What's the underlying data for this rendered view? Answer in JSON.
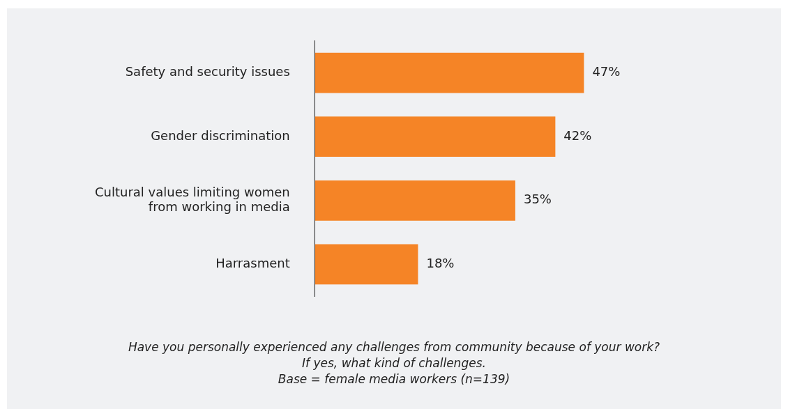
{
  "chart_data": {
    "type": "bar",
    "orientation": "horizontal",
    "categories": [
      "Safety and security issues",
      "Gender discrimination",
      "Cultural values limiting women from working in media",
      "Harrasment"
    ],
    "values": [
      47,
      42,
      35,
      18
    ],
    "color": "#f58426",
    "value_labels": [
      "47%",
      "42%",
      "35%",
      "18%"
    ],
    "annotations": [
      "Have you personally experienced any challenges from community because of your work?",
      "If yes, what kind of challenges.",
      "Base = female media workers (n=139)"
    ],
    "legend": false,
    "tick_labels": "y"
  }
}
